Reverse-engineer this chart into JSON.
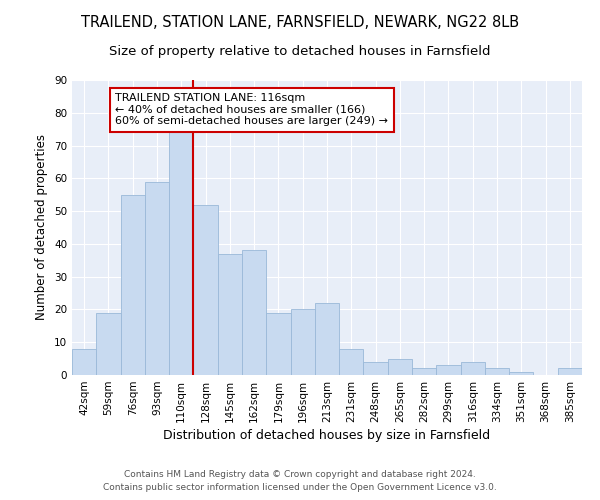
{
  "title1": "TRAILEND, STATION LANE, FARNSFIELD, NEWARK, NG22 8LB",
  "title2": "Size of property relative to detached houses in Farnsfield",
  "xlabel": "Distribution of detached houses by size in Farnsfield",
  "ylabel": "Number of detached properties",
  "categories": [
    "42sqm",
    "59sqm",
    "76sqm",
    "93sqm",
    "110sqm",
    "128sqm",
    "145sqm",
    "162sqm",
    "179sqm",
    "196sqm",
    "213sqm",
    "231sqm",
    "248sqm",
    "265sqm",
    "282sqm",
    "299sqm",
    "316sqm",
    "334sqm",
    "351sqm",
    "368sqm",
    "385sqm"
  ],
  "values": [
    8,
    19,
    55,
    59,
    75,
    52,
    37,
    38,
    19,
    20,
    22,
    8,
    4,
    5,
    2,
    3,
    4,
    2,
    1,
    0,
    2
  ],
  "bar_color": "#c8daf0",
  "bar_edge_color": "#9ab8d8",
  "bar_width": 1.0,
  "red_line_x": 4.5,
  "red_line_color": "#cc0000",
  "annotation_text": "TRAILEND STATION LANE: 116sqm\n← 40% of detached houses are smaller (166)\n60% of semi-detached houses are larger (249) →",
  "annotation_box_color": "#ffffff",
  "annotation_box_edge_color": "#cc0000",
  "ylim": [
    0,
    90
  ],
  "yticks": [
    0,
    10,
    20,
    30,
    40,
    50,
    60,
    70,
    80,
    90
  ],
  "footer1": "Contains HM Land Registry data © Crown copyright and database right 2024.",
  "footer2": "Contains public sector information licensed under the Open Government Licence v3.0.",
  "background_color": "#e8eef8",
  "fig_bg_color": "#ffffff",
  "grid_color": "#ffffff",
  "title1_fontsize": 10.5,
  "title2_fontsize": 9.5,
  "xlabel_fontsize": 9,
  "ylabel_fontsize": 8.5,
  "tick_fontsize": 7.5,
  "footer_fontsize": 6.5,
  "ann_fontsize": 8
}
